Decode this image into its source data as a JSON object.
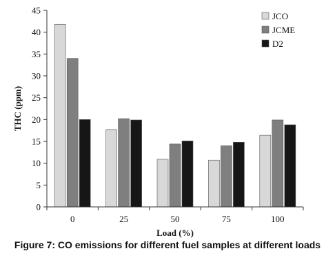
{
  "chart_data": {
    "type": "bar",
    "categories": [
      "0",
      "25",
      "50",
      "75",
      "100"
    ],
    "series": [
      {
        "name": "JCO",
        "values": [
          41.8,
          17.7,
          10.9,
          10.7,
          16.4
        ]
      },
      {
        "name": "JCME",
        "values": [
          34.0,
          20.2,
          14.4,
          14.0,
          19.9
        ]
      },
      {
        "name": "D2",
        "values": [
          20.0,
          19.9,
          15.1,
          14.8,
          18.8
        ]
      }
    ],
    "title": "",
    "xlabel": "Load (%)",
    "ylabel": "THC (ppm)",
    "ylim": [
      0,
      45
    ],
    "yticks": [
      0,
      5,
      10,
      15,
      20,
      25,
      30,
      35,
      40,
      45
    ],
    "grid": false,
    "legend_position": "top-right",
    "colors": [
      "#d8d8d8",
      "#7f7f7f",
      "#161616"
    ]
  },
  "caption": "Figure 7: CO emissions for different fuel samples at different loads"
}
